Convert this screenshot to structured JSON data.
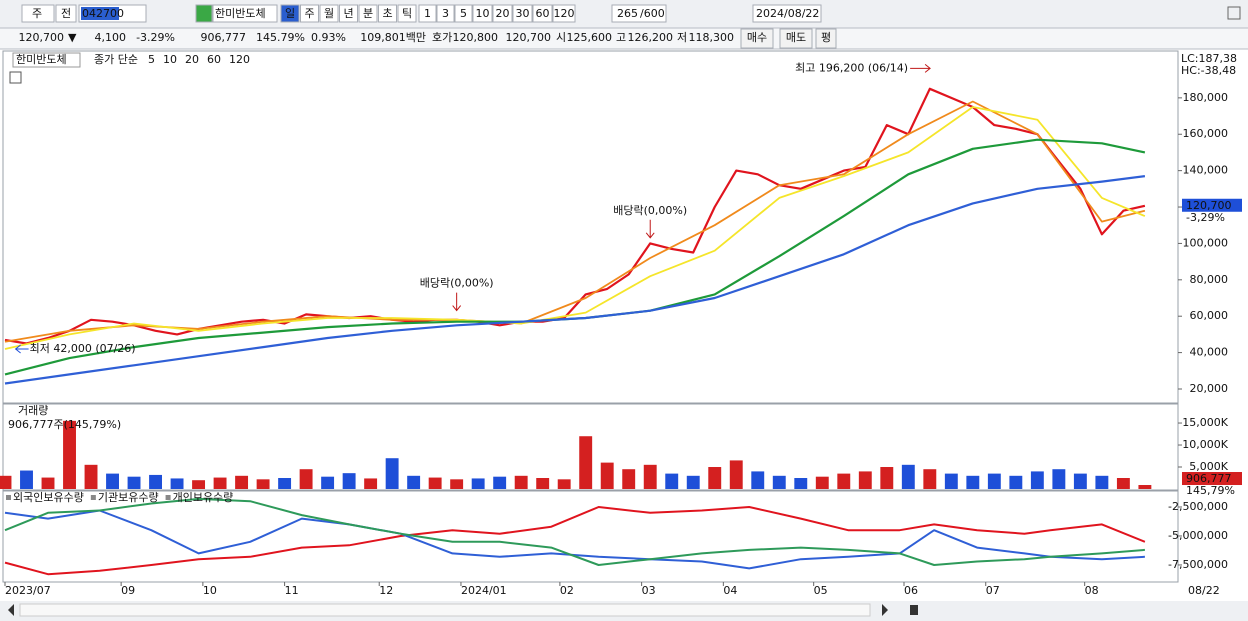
{
  "toolbar": {
    "period_prefix": "주",
    "prev": "전",
    "code": "042700",
    "name": "한미반도체",
    "intervals": [
      "일",
      "주",
      "월",
      "년",
      "분",
      "초",
      "틱"
    ],
    "minutes": [
      "1",
      "3",
      "5",
      "10",
      "20",
      "30",
      "60",
      "120"
    ],
    "count": "265",
    "count_max": "/600",
    "date": "2024/08/22"
  },
  "info_bar": {
    "price": "120,700",
    "arrow": "▼",
    "change": "4,100",
    "change_pct": "-3.29%",
    "volume": "906,777",
    "volume_ratio": "145.79%",
    "turnover": "0.93%",
    "amount": "109,801백만",
    "quote_label": "호가",
    "ask": "120,800",
    "bid": "120,700",
    "open_label": "시",
    "open": "125,600",
    "high_label": "고",
    "high": "126,200",
    "low_label": "저",
    "low": "118,300",
    "buy": "매수",
    "sell": "매도",
    "avg": "평"
  },
  "chart_data": [
    {
      "type": "line",
      "title": "한미반도체",
      "legend_label": "종가 단순",
      "lc_label": "LC:187,38",
      "hc_label": "HC:-38,48",
      "current": {
        "value": 120700,
        "label": "120,700",
        "change": "-3,29%"
      },
      "series": [
        {
          "name": "5",
          "color": "#e0141e",
          "width": 2.2,
          "x": [
            0,
            5,
            10,
            15,
            20,
            25,
            30,
            35,
            40,
            45,
            50,
            55,
            60,
            65,
            70,
            75,
            80,
            85,
            90,
            95,
            100,
            105,
            110,
            115,
            120,
            125,
            130,
            135,
            140,
            145,
            150,
            155,
            160,
            165,
            170,
            175,
            180,
            185,
            190,
            195,
            200,
            205,
            210,
            215,
            220,
            225,
            230,
            235,
            240,
            245,
            250,
            255,
            260,
            265
          ],
          "values": [
            47000,
            45000,
            48000,
            52000,
            58000,
            57000,
            55000,
            52000,
            50000,
            53000,
            55000,
            57000,
            58000,
            56000,
            61000,
            60000,
            59000,
            60000,
            58000,
            57000,
            58000,
            58000,
            57000,
            55000,
            57000,
            57000,
            59000,
            72000,
            75000,
            83000,
            100000,
            97000,
            95000,
            120000,
            140000,
            138000,
            132000,
            130000,
            135000,
            140000,
            142000,
            165000,
            160000,
            185000,
            180000,
            175000,
            165000,
            163000,
            160000,
            145000,
            130000,
            105000,
            118000,
            120700
          ]
        },
        {
          "name": "10",
          "color": "#f08a1c",
          "width": 1.8,
          "x": [
            0,
            15,
            30,
            45,
            60,
            75,
            90,
            105,
            120,
            135,
            150,
            165,
            180,
            195,
            210,
            225,
            240,
            255,
            265
          ],
          "values": [
            46000,
            52000,
            55000,
            53000,
            57000,
            60000,
            58000,
            58000,
            56000,
            70000,
            92000,
            110000,
            132000,
            138000,
            160000,
            178000,
            160000,
            112000,
            118000
          ]
        },
        {
          "name": "20",
          "color": "#f5e52a",
          "width": 1.8,
          "x": [
            0,
            15,
            30,
            45,
            60,
            75,
            90,
            105,
            120,
            135,
            150,
            165,
            180,
            195,
            210,
            225,
            240,
            255,
            265
          ],
          "values": [
            42000,
            50000,
            56000,
            52000,
            56000,
            59000,
            59000,
            58000,
            56000,
            62000,
            82000,
            96000,
            125000,
            137000,
            150000,
            175000,
            168000,
            125000,
            115000
          ]
        },
        {
          "name": "60",
          "color": "#1e9a3a",
          "width": 2.2,
          "x": [
            0,
            15,
            30,
            45,
            60,
            75,
            90,
            105,
            120,
            135,
            150,
            165,
            180,
            195,
            210,
            225,
            240,
            255,
            265
          ],
          "values": [
            28000,
            37000,
            43000,
            48000,
            51000,
            54000,
            56000,
            57000,
            57000,
            59000,
            63000,
            72000,
            93000,
            115000,
            138000,
            152000,
            157000,
            155000,
            150000
          ]
        },
        {
          "name": "120",
          "color": "#2f5fd6",
          "width": 2.2,
          "x": [
            0,
            15,
            30,
            45,
            60,
            75,
            90,
            105,
            120,
            135,
            150,
            165,
            180,
            195,
            210,
            225,
            240,
            255,
            265
          ],
          "values": [
            23000,
            28000,
            33000,
            38000,
            43000,
            48000,
            52000,
            55000,
            57000,
            59000,
            63000,
            70000,
            82000,
            94000,
            110000,
            122000,
            130000,
            134000,
            137000
          ]
        }
      ],
      "annotations": [
        {
          "text": "최고 196,200 (06/14)",
          "x": 216,
          "y": 196200,
          "side": "left"
        },
        {
          "text": "최저 42,000 (07/26)",
          "x": 2,
          "y": 42000,
          "side": "right"
        },
        {
          "text": "배당락(0,00%)",
          "x": 105,
          "y": 62000,
          "side": "above"
        },
        {
          "text": "배당락(0,00%)",
          "x": 150,
          "y": 102000,
          "side": "above"
        }
      ],
      "xlim": [
        0,
        272
      ],
      "xticks": [
        {
          "value": 0,
          "label": "2023/07"
        },
        {
          "value": 27,
          "label": "09"
        },
        {
          "value": 46,
          "label": "10"
        },
        {
          "value": 65,
          "label": "11"
        },
        {
          "value": 87,
          "label": "12"
        },
        {
          "value": 106,
          "label": "2024/01"
        },
        {
          "value": 129,
          "label": "02"
        },
        {
          "value": 148,
          "label": "03"
        },
        {
          "value": 167,
          "label": "04"
        },
        {
          "value": 188,
          "label": "05"
        },
        {
          "value": 209,
          "label": "06"
        },
        {
          "value": 228,
          "label": "07"
        },
        {
          "value": 251,
          "label": "08"
        }
      ],
      "last_date": "08/22",
      "ylim": [
        12300,
        205200
      ],
      "yticks": [
        {
          "value": 20000,
          "label": "20,000"
        },
        {
          "value": 40000,
          "label": "40,000"
        },
        {
          "value": 60000,
          "label": "60,000"
        },
        {
          "value": 80000,
          "label": "80,000"
        },
        {
          "value": 100000,
          "label": "100,000"
        },
        {
          "value": 120000,
          "label": "120,000"
        },
        {
          "value": 140000,
          "label": "140,000"
        },
        {
          "value": 160000,
          "label": "160,000"
        },
        {
          "value": 180000,
          "label": "180,000"
        }
      ]
    },
    {
      "type": "bar",
      "title": "거래량",
      "subtitle": "906,777주(145,79%)",
      "x": [
        0,
        5,
        10,
        15,
        20,
        25,
        30,
        35,
        40,
        45,
        50,
        55,
        60,
        65,
        70,
        75,
        80,
        85,
        90,
        95,
        100,
        105,
        110,
        115,
        120,
        125,
        130,
        135,
        140,
        145,
        150,
        155,
        160,
        165,
        170,
        175,
        180,
        185,
        190,
        195,
        200,
        205,
        210,
        215,
        220,
        225,
        230,
        235,
        240,
        245,
        250,
        255,
        260,
        265
      ],
      "values": [
        3000000,
        4200000,
        2600000,
        15500000,
        5500000,
        3500000,
        2800000,
        3200000,
        2400000,
        2000000,
        2600000,
        3000000,
        2200000,
        2500000,
        4500000,
        2800000,
        3600000,
        2400000,
        7000000,
        3000000,
        2600000,
        2200000,
        2400000,
        2800000,
        3000000,
        2500000,
        2200000,
        12000000,
        6000000,
        4500000,
        5500000,
        3500000,
        3000000,
        5000000,
        6500000,
        4000000,
        3000000,
        2500000,
        2800000,
        3500000,
        4000000,
        5000000,
        5500000,
        4500000,
        3500000,
        3000000,
        3500000,
        3000000,
        4000000,
        4500000,
        3500000,
        3000000,
        2500000,
        906777
      ],
      "up_color": "#d42020",
      "down_color": "#1e4fd8",
      "current": {
        "value": 906777,
        "label": "906,777",
        "ratio": "145,79%"
      },
      "ylim": [
        0,
        19100000
      ],
      "yticks": [
        {
          "value": 5000000,
          "label": "5,000K"
        },
        {
          "value": 10000000,
          "label": "10,000K"
        },
        {
          "value": 15000000,
          "label": "15,000K"
        }
      ]
    },
    {
      "type": "line",
      "x": [
        0,
        10,
        22,
        34,
        45,
        57,
        69,
        80,
        92,
        104,
        115,
        127,
        138,
        150,
        162,
        173,
        185,
        196,
        208,
        216,
        226,
        237,
        243,
        255,
        265
      ],
      "series": [
        {
          "name": "외국인보유수량",
          "color": "#e0141e",
          "values": [
            -7300000,
            -8300000,
            -8000000,
            -7500000,
            -7000000,
            -6800000,
            -6000000,
            -5800000,
            -5000000,
            -4500000,
            -4800000,
            -4200000,
            -2500000,
            -3000000,
            -2800000,
            -2500000,
            -3500000,
            -4500000,
            -4500000,
            -4000000,
            -4500000,
            -4800000,
            -4500000,
            -4000000,
            -5500000
          ]
        },
        {
          "name": "기관보유수량",
          "color": "#2f5fd6",
          "values": [
            -3000000,
            -3500000,
            -2800000,
            -4500000,
            -6500000,
            -5500000,
            -3500000,
            -4000000,
            -4800000,
            -6500000,
            -6800000,
            -6500000,
            -6800000,
            -7000000,
            -7200000,
            -7800000,
            -7000000,
            -6800000,
            -6500000,
            -4500000,
            -6000000,
            -6500000,
            -6800000,
            -7000000,
            -6800000
          ]
        },
        {
          "name": "개인보유수량",
          "color": "#2e9a5a",
          "values": [
            -4500000,
            -3000000,
            -2800000,
            -2200000,
            -1800000,
            -2000000,
            -3200000,
            -4000000,
            -4800000,
            -5500000,
            -5500000,
            -6000000,
            -7500000,
            -7000000,
            -6500000,
            -6200000,
            -6000000,
            -6200000,
            -6500000,
            -7500000,
            -7200000,
            -7000000,
            -6800000,
            -6500000,
            -6200000
          ]
        }
      ],
      "ylim": [
        -8970000,
        -1120000
      ],
      "yticks": [
        {
          "value": -2500000,
          "label": "-2,500,000"
        },
        {
          "value": -5000000,
          "label": "-5,000,000"
        },
        {
          "value": -7500000,
          "label": "-7,500,000"
        }
      ]
    }
  ]
}
